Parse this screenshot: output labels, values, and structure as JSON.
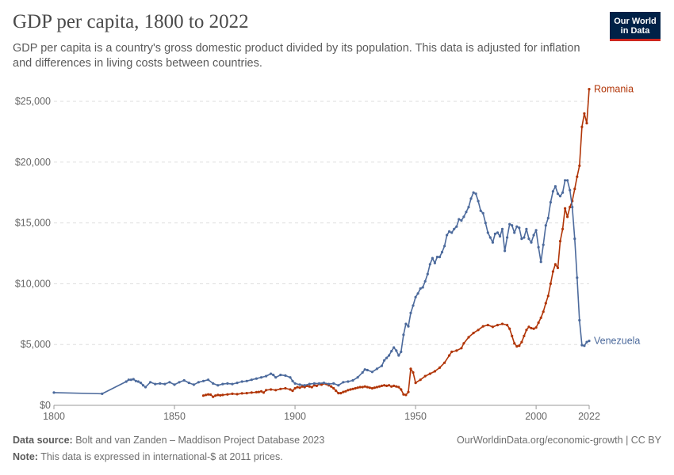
{
  "header": {
    "title": "GDP per capita, 1800 to 2022",
    "subtitle": "GDP per capita is a country's gross domestic product divided by its population. This data is adjusted for inflation and differences in living costs between countries.",
    "logo_line1": "Our World",
    "logo_line2": "in Data"
  },
  "footer": {
    "source_label": "Data source:",
    "source_text": "Bolt and van Zanden – Maddison Project Database 2023",
    "note_label": "Note:",
    "note_text": "This data is expressed in international-$ at 2011 prices.",
    "link_text": "OurWorldinData.org/economic-growth | CC BY"
  },
  "chart_data": {
    "type": "line",
    "title": "GDP per capita, 1800 to 2022",
    "xlim": [
      1800,
      2022
    ],
    "ylim": [
      0,
      25000
    ],
    "x_ticks": [
      1800,
      1850,
      1900,
      1950,
      2000,
      2022
    ],
    "x_tick_labels": [
      "1800",
      "1850",
      "1900",
      "1950",
      "2000",
      "2022"
    ],
    "y_ticks": [
      0,
      5000,
      10000,
      15000,
      20000,
      25000
    ],
    "y_tick_labels": [
      "$0",
      "$5,000",
      "$10,000",
      "$15,000",
      "$20,000",
      "$25,000"
    ],
    "grid": "horizontal dashed",
    "legend": "inline labels at line ends",
    "series": [
      {
        "name": "Romania",
        "color": "#b13507",
        "points": [
          [
            1862,
            800
          ],
          [
            1863,
            850
          ],
          [
            1864,
            900
          ],
          [
            1865,
            880
          ],
          [
            1866,
            700
          ],
          [
            1867,
            800
          ],
          [
            1868,
            850
          ],
          [
            1869,
            820
          ],
          [
            1870,
            850
          ],
          [
            1872,
            900
          ],
          [
            1874,
            950
          ],
          [
            1876,
            920
          ],
          [
            1878,
            980
          ],
          [
            1880,
            1000
          ],
          [
            1882,
            1050
          ],
          [
            1884,
            1080
          ],
          [
            1885,
            1100
          ],
          [
            1886,
            1150
          ],
          [
            1887,
            1050
          ],
          [
            1888,
            1250
          ],
          [
            1890,
            1300
          ],
          [
            1892,
            1250
          ],
          [
            1894,
            1350
          ],
          [
            1896,
            1400
          ],
          [
            1898,
            1300
          ],
          [
            1899,
            1200
          ],
          [
            1900,
            1400
          ],
          [
            1901,
            1500
          ],
          [
            1902,
            1450
          ],
          [
            1903,
            1550
          ],
          [
            1904,
            1500
          ],
          [
            1905,
            1600
          ],
          [
            1906,
            1550
          ],
          [
            1907,
            1500
          ],
          [
            1908,
            1650
          ],
          [
            1909,
            1600
          ],
          [
            1910,
            1750
          ],
          [
            1911,
            1700
          ],
          [
            1912,
            1800
          ],
          [
            1913,
            1750
          ],
          [
            1914,
            1650
          ],
          [
            1915,
            1550
          ],
          [
            1916,
            1400
          ],
          [
            1917,
            1200
          ],
          [
            1918,
            1000
          ],
          [
            1919,
            1000
          ],
          [
            1920,
            1100
          ],
          [
            1921,
            1150
          ],
          [
            1922,
            1250
          ],
          [
            1923,
            1300
          ],
          [
            1924,
            1350
          ],
          [
            1925,
            1400
          ],
          [
            1926,
            1450
          ],
          [
            1927,
            1500
          ],
          [
            1928,
            1500
          ],
          [
            1929,
            1550
          ],
          [
            1930,
            1500
          ],
          [
            1931,
            1450
          ],
          [
            1932,
            1400
          ],
          [
            1933,
            1450
          ],
          [
            1934,
            1500
          ],
          [
            1935,
            1550
          ],
          [
            1936,
            1600
          ],
          [
            1937,
            1650
          ],
          [
            1938,
            1600
          ],
          [
            1939,
            1650
          ],
          [
            1940,
            1550
          ],
          [
            1941,
            1600
          ],
          [
            1942,
            1550
          ],
          [
            1943,
            1500
          ],
          [
            1944,
            1300
          ],
          [
            1945,
            900
          ],
          [
            1946,
            850
          ],
          [
            1947,
            1100
          ],
          [
            1948,
            3000
          ],
          [
            1949,
            2700
          ],
          [
            1950,
            1850
          ],
          [
            1952,
            2100
          ],
          [
            1954,
            2400
          ],
          [
            1956,
            2600
          ],
          [
            1958,
            2800
          ],
          [
            1960,
            3100
          ],
          [
            1962,
            3500
          ],
          [
            1964,
            4100
          ],
          [
            1965,
            4400
          ],
          [
            1967,
            4500
          ],
          [
            1969,
            4700
          ],
          [
            1970,
            5100
          ],
          [
            1972,
            5600
          ],
          [
            1974,
            5950
          ],
          [
            1976,
            6200
          ],
          [
            1978,
            6500
          ],
          [
            1980,
            6600
          ],
          [
            1982,
            6450
          ],
          [
            1984,
            6600
          ],
          [
            1986,
            6700
          ],
          [
            1988,
            6600
          ],
          [
            1989,
            6300
          ],
          [
            1990,
            5700
          ],
          [
            1991,
            5100
          ],
          [
            1992,
            4850
          ],
          [
            1993,
            4900
          ],
          [
            1994,
            5200
          ],
          [
            1995,
            5700
          ],
          [
            1996,
            6200
          ],
          [
            1997,
            6450
          ],
          [
            1998,
            6350
          ],
          [
            1999,
            6300
          ],
          [
            2000,
            6400
          ],
          [
            2001,
            6800
          ],
          [
            2002,
            7200
          ],
          [
            2003,
            7700
          ],
          [
            2004,
            8400
          ],
          [
            2005,
            9000
          ],
          [
            2006,
            10000
          ],
          [
            2007,
            11000
          ],
          [
            2008,
            11600
          ],
          [
            2009,
            11300
          ],
          [
            2010,
            13500
          ],
          [
            2011,
            14500
          ],
          [
            2012,
            16200
          ],
          [
            2013,
            15500
          ],
          [
            2014,
            16300
          ],
          [
            2015,
            16800
          ],
          [
            2016,
            17800
          ],
          [
            2017,
            18800
          ],
          [
            2018,
            19700
          ],
          [
            2019,
            22900
          ],
          [
            2020,
            24000
          ],
          [
            2021,
            23200
          ],
          [
            2022,
            26000
          ]
        ]
      },
      {
        "name": "Venezuela",
        "color": "#4c6a9c",
        "points": [
          [
            1800,
            1050
          ],
          [
            1820,
            950
          ],
          [
            1830,
            1950
          ],
          [
            1831,
            2100
          ],
          [
            1832,
            2100
          ],
          [
            1833,
            2150
          ],
          [
            1834,
            2000
          ],
          [
            1835,
            1950
          ],
          [
            1836,
            1850
          ],
          [
            1837,
            1650
          ],
          [
            1838,
            1500
          ],
          [
            1840,
            1900
          ],
          [
            1842,
            1750
          ],
          [
            1844,
            1800
          ],
          [
            1846,
            1750
          ],
          [
            1848,
            1900
          ],
          [
            1850,
            1700
          ],
          [
            1852,
            1900
          ],
          [
            1854,
            2050
          ],
          [
            1856,
            1850
          ],
          [
            1858,
            1700
          ],
          [
            1860,
            1900
          ],
          [
            1862,
            2000
          ],
          [
            1864,
            2100
          ],
          [
            1866,
            1800
          ],
          [
            1868,
            1650
          ],
          [
            1870,
            1750
          ],
          [
            1872,
            1800
          ],
          [
            1874,
            1750
          ],
          [
            1876,
            1850
          ],
          [
            1878,
            1950
          ],
          [
            1880,
            2000
          ],
          [
            1882,
            2100
          ],
          [
            1884,
            2200
          ],
          [
            1886,
            2300
          ],
          [
            1888,
            2400
          ],
          [
            1890,
            2600
          ],
          [
            1891,
            2500
          ],
          [
            1892,
            2300
          ],
          [
            1894,
            2500
          ],
          [
            1896,
            2450
          ],
          [
            1898,
            2300
          ],
          [
            1899,
            2000
          ],
          [
            1900,
            1800
          ],
          [
            1902,
            1700
          ],
          [
            1904,
            1650
          ],
          [
            1906,
            1750
          ],
          [
            1908,
            1800
          ],
          [
            1910,
            1800
          ],
          [
            1912,
            1850
          ],
          [
            1914,
            1750
          ],
          [
            1916,
            1800
          ],
          [
            1918,
            1650
          ],
          [
            1920,
            1900
          ],
          [
            1922,
            1950
          ],
          [
            1924,
            2050
          ],
          [
            1926,
            2300
          ],
          [
            1928,
            2700
          ],
          [
            1929,
            2950
          ],
          [
            1930,
            2900
          ],
          [
            1932,
            2750
          ],
          [
            1934,
            3000
          ],
          [
            1936,
            3250
          ],
          [
            1937,
            3700
          ],
          [
            1938,
            3900
          ],
          [
            1939,
            4100
          ],
          [
            1940,
            4450
          ],
          [
            1941,
            4750
          ],
          [
            1942,
            4500
          ],
          [
            1943,
            4100
          ],
          [
            1944,
            4400
          ],
          [
            1945,
            5800
          ],
          [
            1946,
            6700
          ],
          [
            1947,
            6500
          ],
          [
            1948,
            7600
          ],
          [
            1949,
            8200
          ],
          [
            1950,
            8900
          ],
          [
            1951,
            9200
          ],
          [
            1952,
            9600
          ],
          [
            1953,
            9700
          ],
          [
            1954,
            10200
          ],
          [
            1955,
            10800
          ],
          [
            1956,
            11600
          ],
          [
            1957,
            12100
          ],
          [
            1958,
            11700
          ],
          [
            1959,
            12200
          ],
          [
            1960,
            12200
          ],
          [
            1961,
            12600
          ],
          [
            1962,
            13100
          ],
          [
            1963,
            14000
          ],
          [
            1964,
            14300
          ],
          [
            1965,
            14200
          ],
          [
            1966,
            14500
          ],
          [
            1967,
            14700
          ],
          [
            1968,
            15300
          ],
          [
            1969,
            15200
          ],
          [
            1970,
            15500
          ],
          [
            1971,
            15900
          ],
          [
            1972,
            16300
          ],
          [
            1973,
            17000
          ],
          [
            1974,
            17500
          ],
          [
            1975,
            17400
          ],
          [
            1976,
            16800
          ],
          [
            1977,
            16000
          ],
          [
            1978,
            15800
          ],
          [
            1979,
            15000
          ],
          [
            1980,
            14200
          ],
          [
            1981,
            13800
          ],
          [
            1982,
            13400
          ],
          [
            1983,
            14100
          ],
          [
            1984,
            14200
          ],
          [
            1985,
            13900
          ],
          [
            1986,
            14500
          ],
          [
            1987,
            12700
          ],
          [
            1988,
            13800
          ],
          [
            1989,
            14900
          ],
          [
            1990,
            14800
          ],
          [
            1991,
            14200
          ],
          [
            1992,
            14700
          ],
          [
            1993,
            14600
          ],
          [
            1994,
            13700
          ],
          [
            1995,
            13800
          ],
          [
            1996,
            14500
          ],
          [
            1997,
            13700
          ],
          [
            1998,
            13400
          ],
          [
            1999,
            14000
          ],
          [
            2000,
            14400
          ],
          [
            2001,
            13000
          ],
          [
            2002,
            11800
          ],
          [
            2003,
            13200
          ],
          [
            2004,
            14800
          ],
          [
            2005,
            15400
          ],
          [
            2006,
            16700
          ],
          [
            2007,
            17600
          ],
          [
            2008,
            18000
          ],
          [
            2009,
            17400
          ],
          [
            2010,
            17200
          ],
          [
            2011,
            17500
          ],
          [
            2012,
            18500
          ],
          [
            2013,
            18500
          ],
          [
            2014,
            17700
          ],
          [
            2015,
            16300
          ],
          [
            2016,
            13700
          ],
          [
            2017,
            10500
          ],
          [
            2018,
            7000
          ],
          [
            2019,
            4950
          ],
          [
            2020,
            4900
          ],
          [
            2021,
            5200
          ],
          [
            2022,
            5300
          ]
        ]
      }
    ]
  }
}
